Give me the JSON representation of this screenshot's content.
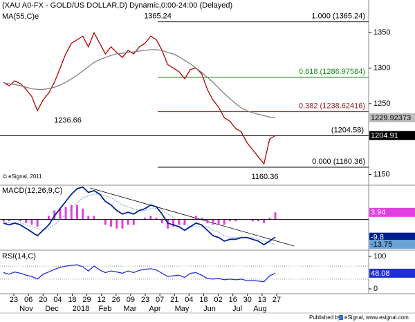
{
  "header": {
    "title": "(XAU A0-FX - GOLD/US DOLLAR,D) Dynamic,0:00-24:00 (Delayed)",
    "copyright": "© eSignal, 2011"
  },
  "chart_data": [
    {
      "type": "line",
      "series": [
        {
          "color": "#b00000",
          "values": [
            1280,
            1275,
            1282,
            1278,
            1270,
            1260,
            1240,
            1255,
            1265,
            1280,
            1300,
            1320,
            1335,
            1340,
            1345,
            1330,
            1350,
            1335,
            1320,
            1330,
            1322,
            1315,
            1325,
            1320,
            1330,
            1335,
            1345,
            1340,
            1325,
            1305,
            1300,
            1295,
            1285,
            1298,
            1300,
            1292,
            1270,
            1255,
            1245,
            1230,
            1225,
            1215,
            1210,
            1195,
            1185,
            1175,
            1165,
            1200,
            1204.91
          ]
        },
        {
          "name": "MA(55,C)e",
          "color": "#808080",
          "values": [
            1279,
            1278,
            1277,
            1275,
            1273,
            1271,
            1270,
            1270,
            1271,
            1273,
            1276,
            1280,
            1285,
            1290,
            1296,
            1302,
            1308,
            1312,
            1315,
            1318,
            1320,
            1321,
            1322,
            1323,
            1324,
            1325,
            1326,
            1326,
            1325,
            1322,
            1320,
            1316,
            1311,
            1306,
            1300,
            1294,
            1287,
            1280,
            1272,
            1264,
            1257,
            1250,
            1244,
            1240,
            1237,
            1235,
            1233,
            1231,
            1229.92373
          ]
        }
      ],
      "ylim": [
        1135,
        1396
      ],
      "yticks": [
        1150,
        1250,
        1300,
        1350
      ],
      "levels": [
        {
          "value": 1365.24,
          "label": "1.000 (1365.24)",
          "color": "#000000"
        },
        {
          "value": 1286.97584,
          "label": "0.618 (1286.97584)",
          "color": "#1a8a1a"
        },
        {
          "value": 1238.62416,
          "label": "0.382 (1238.62416)",
          "color": "#8b1a1a"
        },
        {
          "value": 1160.36,
          "label": "0.000 (1160.36)",
          "color": "#000000"
        }
      ],
      "hline": {
        "value": 1204.58,
        "label": "(1204.58)"
      },
      "annotations": [
        1365.24,
        1236.66,
        1160.36
      ]
    },
    {
      "type": "macd",
      "title": "MACD(12,26,9,C)",
      "ylim": [
        -17,
        19
      ],
      "zero_line": 0,
      "series": [
        {
          "color": "#001f8f",
          "values": [
            -2,
            -3,
            -2,
            -3,
            -5,
            -7,
            -9,
            -6,
            -3,
            2,
            6,
            10,
            14,
            17,
            18,
            15,
            16,
            14,
            10,
            8,
            5,
            3,
            4,
            3,
            5,
            6,
            8,
            7,
            3,
            -2,
            -3,
            -4,
            -6,
            -4,
            -2,
            -3,
            -6,
            -9,
            -10,
            -12,
            -11,
            -11,
            -10,
            -10,
            -11,
            -12,
            -14,
            -12,
            -9.8
          ]
        },
        {
          "color": "#6aa3d8",
          "values": [
            -1,
            -2,
            -2,
            -2,
            -3,
            -4,
            -5,
            -6,
            -5,
            -3,
            0,
            3,
            6,
            9,
            12,
            13,
            14,
            14,
            13,
            12,
            10,
            8,
            7,
            6,
            5,
            5,
            6,
            6,
            5,
            3,
            1,
            -1,
            -3,
            -4,
            -4,
            -4,
            -4,
            -6,
            -7,
            -9,
            -10,
            -10,
            -10,
            -10,
            -10,
            -11,
            -12,
            -13,
            -13.75
          ]
        },
        {
          "color": "#e040e0",
          "values": [
            -1,
            -1,
            0,
            -1,
            -2,
            -3,
            -4,
            0,
            2,
            5,
            6,
            7,
            8,
            8,
            6,
            2,
            2,
            0,
            -3,
            -4,
            -5,
            -5,
            -3,
            -3,
            0,
            1,
            2,
            1,
            -2,
            -5,
            -4,
            -3,
            -3,
            0,
            2,
            1,
            -2,
            -3,
            -3,
            -3,
            -1,
            -1,
            0,
            0,
            -1,
            -1,
            -2,
            1,
            3.94
          ]
        }
      ]
    },
    {
      "type": "line",
      "title": "RSI(14,C)",
      "ylim": [
        0,
        100
      ],
      "yticks": [
        0,
        100
      ],
      "guides": [
        30,
        70
      ],
      "series": [
        {
          "color": "#1f2fd0",
          "values": [
            50,
            45,
            52,
            48,
            42,
            38,
            30,
            45,
            52,
            60,
            66,
            70,
            72,
            74,
            68,
            55,
            70,
            58,
            50,
            55,
            52,
            48,
            55,
            50,
            57,
            60,
            62,
            58,
            48,
            38,
            40,
            42,
            35,
            48,
            50,
            42,
            32,
            30,
            32,
            28,
            30,
            28,
            30,
            25,
            26,
            24,
            22,
            40,
            48.08
          ]
        }
      ]
    }
  ],
  "x_axis": {
    "days": [
      "23",
      "06",
      "20",
      "04",
      "18",
      "29",
      "12",
      "26",
      "09",
      "23",
      "07",
      "21",
      "04",
      "18",
      "02",
      "16",
      "30",
      "13",
      "27"
    ],
    "months": [
      "Nov",
      "Dec",
      "2018",
      "Feb",
      "Mar",
      "Apr",
      "May",
      "Jun",
      "Jul",
      "Aug"
    ]
  },
  "footer": {
    "published": "Published by",
    "brand": "eSignal,",
    "site": "www.esignal.com"
  }
}
